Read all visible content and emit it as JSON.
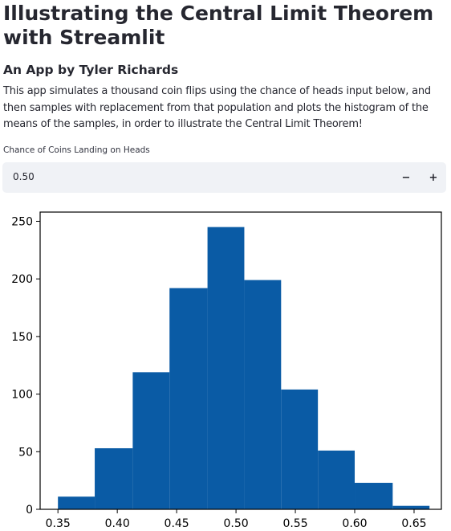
{
  "page": {
    "title": "Illustrating the Central Limit Theorem with Streamlit",
    "subtitle": "An App by Tyler Richards",
    "description": "This app simulates a thousand coin flips using the chance of heads input below, and then samples with replacement from that population and plots the histogram of the means of the samples, in order to illustrate the Central Limit Theorem!"
  },
  "input": {
    "label": "Chance of Coins Landing on Heads",
    "value": "0.50",
    "minus_label": "−",
    "plus_label": "+"
  },
  "colors": {
    "bar": "#0a5ba5",
    "input_bg": "#f0f2f6"
  },
  "chart_data": {
    "type": "bar",
    "title": "",
    "xlabel": "",
    "ylabel": "",
    "bin_edges": [
      0.35,
      0.381,
      0.413,
      0.444,
      0.476,
      0.507,
      0.538,
      0.569,
      0.6,
      0.632,
      0.663
    ],
    "values": [
      11,
      53,
      119,
      192,
      245,
      199,
      104,
      51,
      23,
      3
    ],
    "xlim": [
      0.335,
      0.673
    ],
    "ylim": [
      0,
      258
    ],
    "xticks": [
      0.35,
      0.4,
      0.45,
      0.5,
      0.55,
      0.6,
      0.65
    ],
    "xtick_labels": [
      "0.35",
      "0.40",
      "0.45",
      "0.50",
      "0.55",
      "0.60",
      "0.65"
    ],
    "yticks": [
      0,
      50,
      100,
      150,
      200,
      250
    ],
    "ytick_labels": [
      "0",
      "50",
      "100",
      "150",
      "200",
      "250"
    ],
    "grid": false
  }
}
